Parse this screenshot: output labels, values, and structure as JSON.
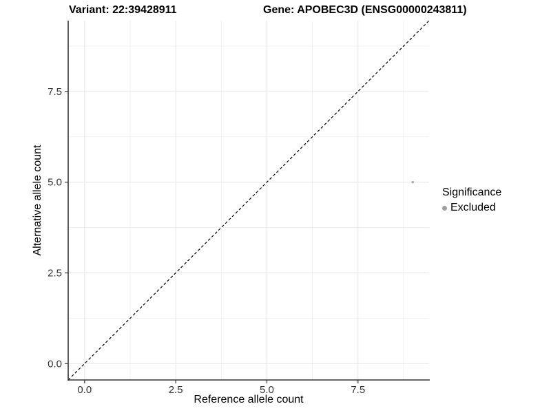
{
  "header": {
    "variant_title": "Variant: 22:39428911",
    "gene_title": "Gene: APOBEC3D (ENSG00000243811)"
  },
  "legend": {
    "title": "Significance",
    "items": [
      {
        "label": "Excluded",
        "color": "#9e9e9e"
      }
    ]
  },
  "chart_data": {
    "type": "scatter",
    "xlabel": "Reference allele count",
    "ylabel": "Alternative allele count",
    "xlim": [
      -0.45,
      9.45
    ],
    "ylim": [
      -0.45,
      9.45
    ],
    "xticks": [
      0,
      2.5,
      5,
      7.5
    ],
    "xtick_labels": [
      "0.0",
      "2.5",
      "5.0",
      "7.5"
    ],
    "yticks": [
      0,
      2.5,
      5,
      7.5
    ],
    "ytick_labels": [
      "0.0",
      "2.5",
      "5.0",
      "7.5"
    ],
    "grid": "major+minor",
    "legend_position": "right",
    "series": [
      {
        "name": "Excluded",
        "color": "#b0b0b0",
        "point_radius": 1.8,
        "points": [
          {
            "x": 9,
            "y": 5
          }
        ]
      }
    ],
    "reference_line": {
      "kind": "identity",
      "from": [
        -0.45,
        -0.45
      ],
      "to": [
        9.45,
        9.45
      ],
      "style": "dashed",
      "color": "#000000"
    },
    "colors": {
      "grid_major": "#e6e6e6",
      "grid_minor": "#f2f2f2",
      "axis_line": "#333333",
      "tick_label": "#333333"
    }
  }
}
